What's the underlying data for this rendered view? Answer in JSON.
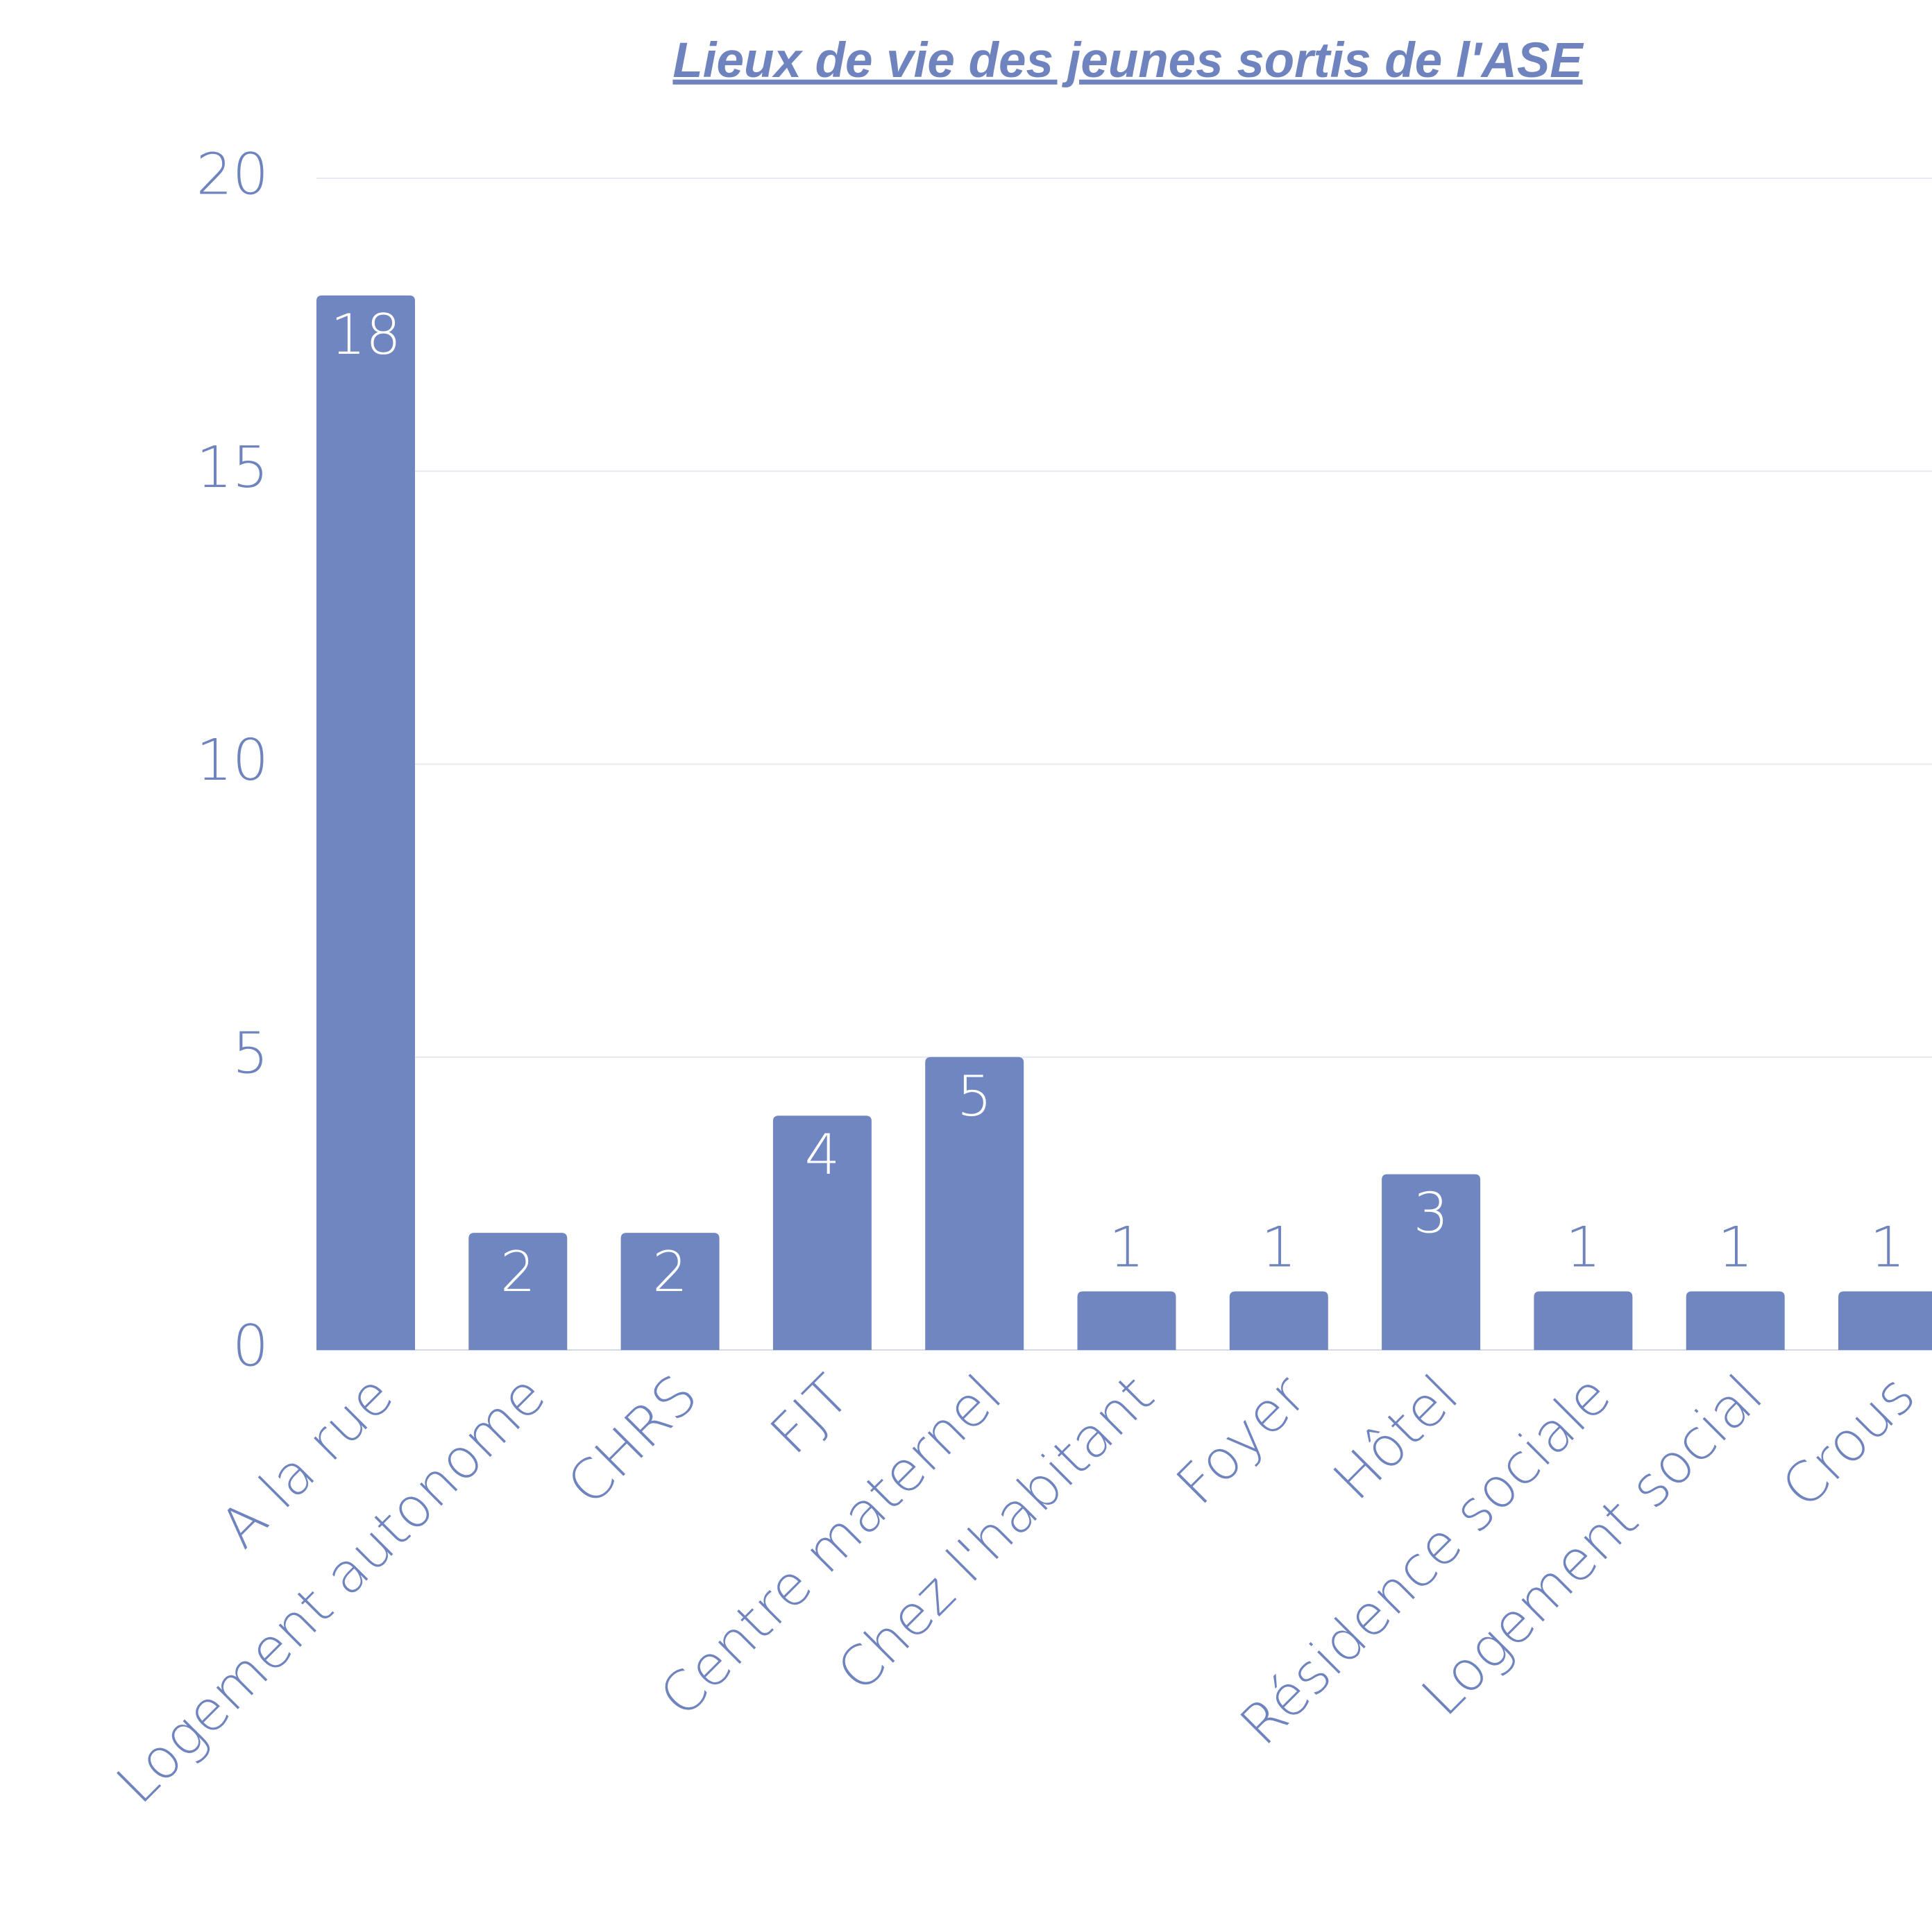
{
  "chart_data": {
    "type": "bar",
    "title": "Lieux de vie des jeunes sortis de  l'ASE",
    "categories": [
      "A la rue",
      "Logement autonome",
      "CHRS",
      "FJT",
      "Centre maternel",
      "Chez l'habitant",
      "Foyer",
      "Hôtel",
      "Résidence sociale",
      "Logement social",
      "Crous"
    ],
    "values": [
      18,
      2,
      2,
      4,
      5,
      1,
      1,
      3,
      1,
      1,
      1
    ],
    "color": "#7086c1",
    "ylim": [
      0,
      20
    ],
    "yticks": [
      0,
      5,
      10,
      15,
      20
    ],
    "grid": true
  }
}
